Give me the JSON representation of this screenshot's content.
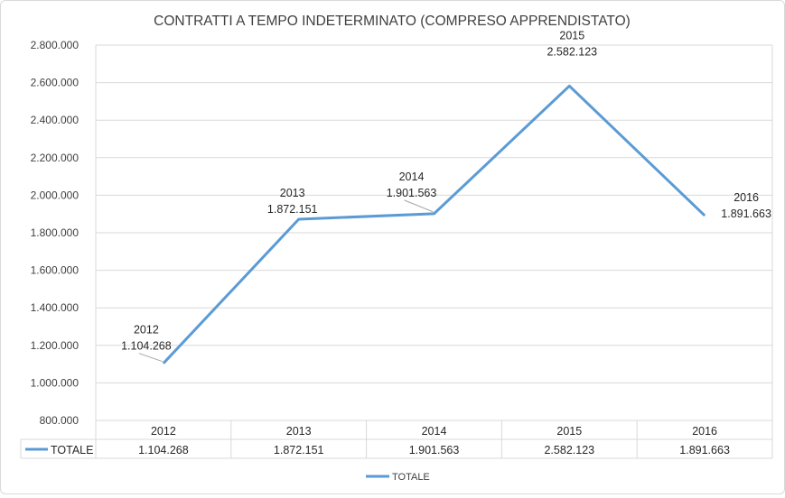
{
  "chart_data": {
    "type": "line",
    "title": "CONTRATTI A TEMPO INDETERMINATO (COMPRESO APPRENDISTATO)",
    "categories": [
      "2012",
      "2013",
      "2014",
      "2015",
      "2016"
    ],
    "series": [
      {
        "name": "TOTALE",
        "values": [
          1104268,
          1872151,
          1901563,
          2582123,
          1891663
        ],
        "labels": [
          "1.104.268",
          "1.872.151",
          "1.901.563",
          "2.582.123",
          "1.891.663"
        ],
        "color": "#5b9bd5"
      }
    ],
    "ylim": [
      800000,
      2800000
    ],
    "yticks": [
      800000,
      1000000,
      1200000,
      1400000,
      1600000,
      1800000,
      2000000,
      2200000,
      2400000,
      2600000,
      2800000
    ],
    "ytick_labels": [
      "800.000",
      "1.000.000",
      "1.200.000",
      "1.400.000",
      "1.600.000",
      "1.800.000",
      "2.000.000",
      "2.200.000",
      "2.400.000",
      "2.600.000",
      "2.800.000"
    ],
    "grid": true,
    "data_table": true,
    "legend": "bottom",
    "legend_label": "TOTALE"
  }
}
